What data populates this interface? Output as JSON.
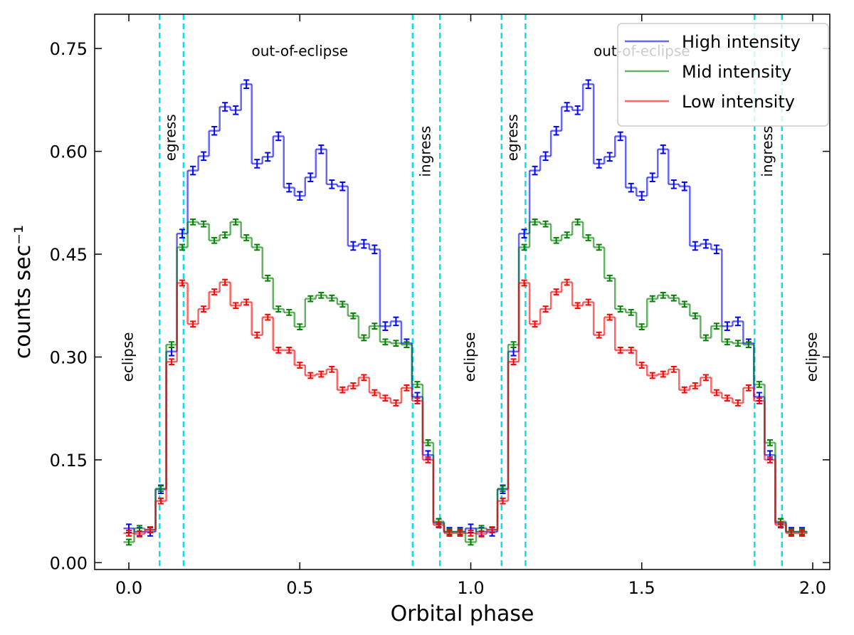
{
  "chart_data": {
    "type": "step",
    "xlabel": "Orbital phase",
    "ylabel": "counts sec⁻¹",
    "xlim": [
      -0.1,
      2.05
    ],
    "ylim": [
      -0.01,
      0.8
    ],
    "xticks": [
      {
        "value": 0,
        "label": "0.0"
      },
      0.5,
      {
        "value": 1,
        "label": "1.0"
      },
      1.5,
      {
        "value": 2,
        "label": "2.0"
      }
    ],
    "yticks": [
      {
        "value": 0,
        "label": "0.00"
      },
      0.15,
      {
        "value": 0.3,
        "label": "0.30"
      },
      0.45,
      {
        "value": 0.6,
        "label": "0.60"
      },
      0.75
    ],
    "legend": "upper right",
    "vlines": {
      "color": "#00e5ee",
      "values": [
        0.09,
        0.16,
        0.83,
        0.91,
        1.09,
        1.16,
        1.83,
        1.91
      ]
    },
    "annotations": [
      {
        "text": "eclipse",
        "x": 0.0,
        "y": 0.3,
        "orientation": "vertical"
      },
      {
        "text": "egress",
        "x": 0.125,
        "y": 0.62,
        "orientation": "vertical"
      },
      {
        "text": "out-of-eclipse",
        "x": 0.5,
        "y": 0.745,
        "orientation": "horizontal"
      },
      {
        "text": "ingress",
        "x": 0.87,
        "y": 0.6,
        "orientation": "vertical"
      },
      {
        "text": "eclipse",
        "x": 1.0,
        "y": 0.3,
        "orientation": "vertical"
      },
      {
        "text": "egress",
        "x": 1.125,
        "y": 0.62,
        "orientation": "vertical"
      },
      {
        "text": "out-of-eclipse",
        "x": 1.5,
        "y": 0.745,
        "orientation": "horizontal"
      },
      {
        "text": "ingress",
        "x": 1.87,
        "y": 0.6,
        "orientation": "vertical"
      },
      {
        "text": "eclipse",
        "x": 2.0,
        "y": 0.3,
        "orientation": "vertical"
      }
    ],
    "x": [
      0,
      0.03125,
      0.0625,
      0.09375,
      0.125,
      0.15625,
      0.1875,
      0.21875,
      0.25,
      0.28125,
      0.3125,
      0.34375,
      0.375,
      0.40625,
      0.4375,
      0.46875,
      0.5,
      0.53125,
      0.5625,
      0.59375,
      0.625,
      0.65625,
      0.6875,
      0.71875,
      0.75,
      0.78125,
      0.8125,
      0.84375,
      0.875,
      0.90625,
      0.9375,
      0.96875,
      1,
      1.03125,
      1.0625,
      1.09375,
      1.125,
      1.15625,
      1.1875,
      1.21875,
      1.25,
      1.28125,
      1.3125,
      1.34375,
      1.375,
      1.40625,
      1.4375,
      1.46875,
      1.5,
      1.53125,
      1.5625,
      1.59375,
      1.625,
      1.65625,
      1.6875,
      1.71875,
      1.75,
      1.78125,
      1.8125,
      1.84375,
      1.875,
      1.90625,
      1.9375,
      1.96875
    ],
    "series": [
      {
        "name": "High intensity",
        "color": "#0000ff",
        "yerr": 0.006,
        "values": [
          0.05,
          0.045,
          0.045,
          0.107,
          0.308,
          0.48,
          0.572,
          0.593,
          0.63,
          0.665,
          0.66,
          0.698,
          0.582,
          0.592,
          0.622,
          0.547,
          0.535,
          0.562,
          0.603,
          0.552,
          0.549,
          0.462,
          0.465,
          0.457,
          0.345,
          0.352,
          0.32,
          0.242,
          0.157,
          0.058,
          0.045,
          0.045,
          0.05,
          0.045,
          0.045,
          0.107,
          0.308,
          0.48,
          0.572,
          0.593,
          0.63,
          0.665,
          0.66,
          0.698,
          0.582,
          0.592,
          0.622,
          0.547,
          0.535,
          0.562,
          0.603,
          0.552,
          0.549,
          0.462,
          0.465,
          0.457,
          0.345,
          0.352,
          0.32,
          0.242,
          0.157,
          0.058,
          0.045,
          0.045
        ]
      },
      {
        "name": "Mid intensity",
        "color": "#008000",
        "yerr": 0.004,
        "values": [
          0.03,
          0.05,
          0.048,
          0.108,
          0.318,
          0.46,
          0.497,
          0.494,
          0.47,
          0.478,
          0.497,
          0.474,
          0.46,
          0.415,
          0.37,
          0.365,
          0.344,
          0.385,
          0.39,
          0.386,
          0.377,
          0.36,
          0.328,
          0.345,
          0.322,
          0.32,
          0.318,
          0.26,
          0.175,
          0.06,
          0.045,
          0.045,
          0.03,
          0.05,
          0.048,
          0.108,
          0.318,
          0.46,
          0.497,
          0.494,
          0.47,
          0.478,
          0.497,
          0.474,
          0.46,
          0.415,
          0.37,
          0.365,
          0.344,
          0.385,
          0.39,
          0.386,
          0.377,
          0.36,
          0.328,
          0.345,
          0.322,
          0.32,
          0.318,
          0.26,
          0.175,
          0.06,
          0.045,
          0.045
        ]
      },
      {
        "name": "Low intensity",
        "color": "#ff0000",
        "yerr": 0.004,
        "values": [
          0.043,
          0.042,
          0.048,
          0.09,
          0.293,
          0.408,
          0.348,
          0.37,
          0.395,
          0.409,
          0.375,
          0.38,
          0.332,
          0.358,
          0.31,
          0.31,
          0.288,
          0.273,
          0.275,
          0.282,
          0.252,
          0.258,
          0.27,
          0.248,
          0.24,
          0.233,
          0.255,
          0.236,
          0.15,
          0.055,
          0.043,
          0.043,
          0.043,
          0.042,
          0.048,
          0.09,
          0.293,
          0.408,
          0.348,
          0.37,
          0.395,
          0.409,
          0.375,
          0.38,
          0.332,
          0.358,
          0.31,
          0.31,
          0.288,
          0.273,
          0.275,
          0.282,
          0.252,
          0.258,
          0.27,
          0.248,
          0.24,
          0.233,
          0.255,
          0.236,
          0.15,
          0.055,
          0.043,
          0.043
        ]
      }
    ]
  }
}
